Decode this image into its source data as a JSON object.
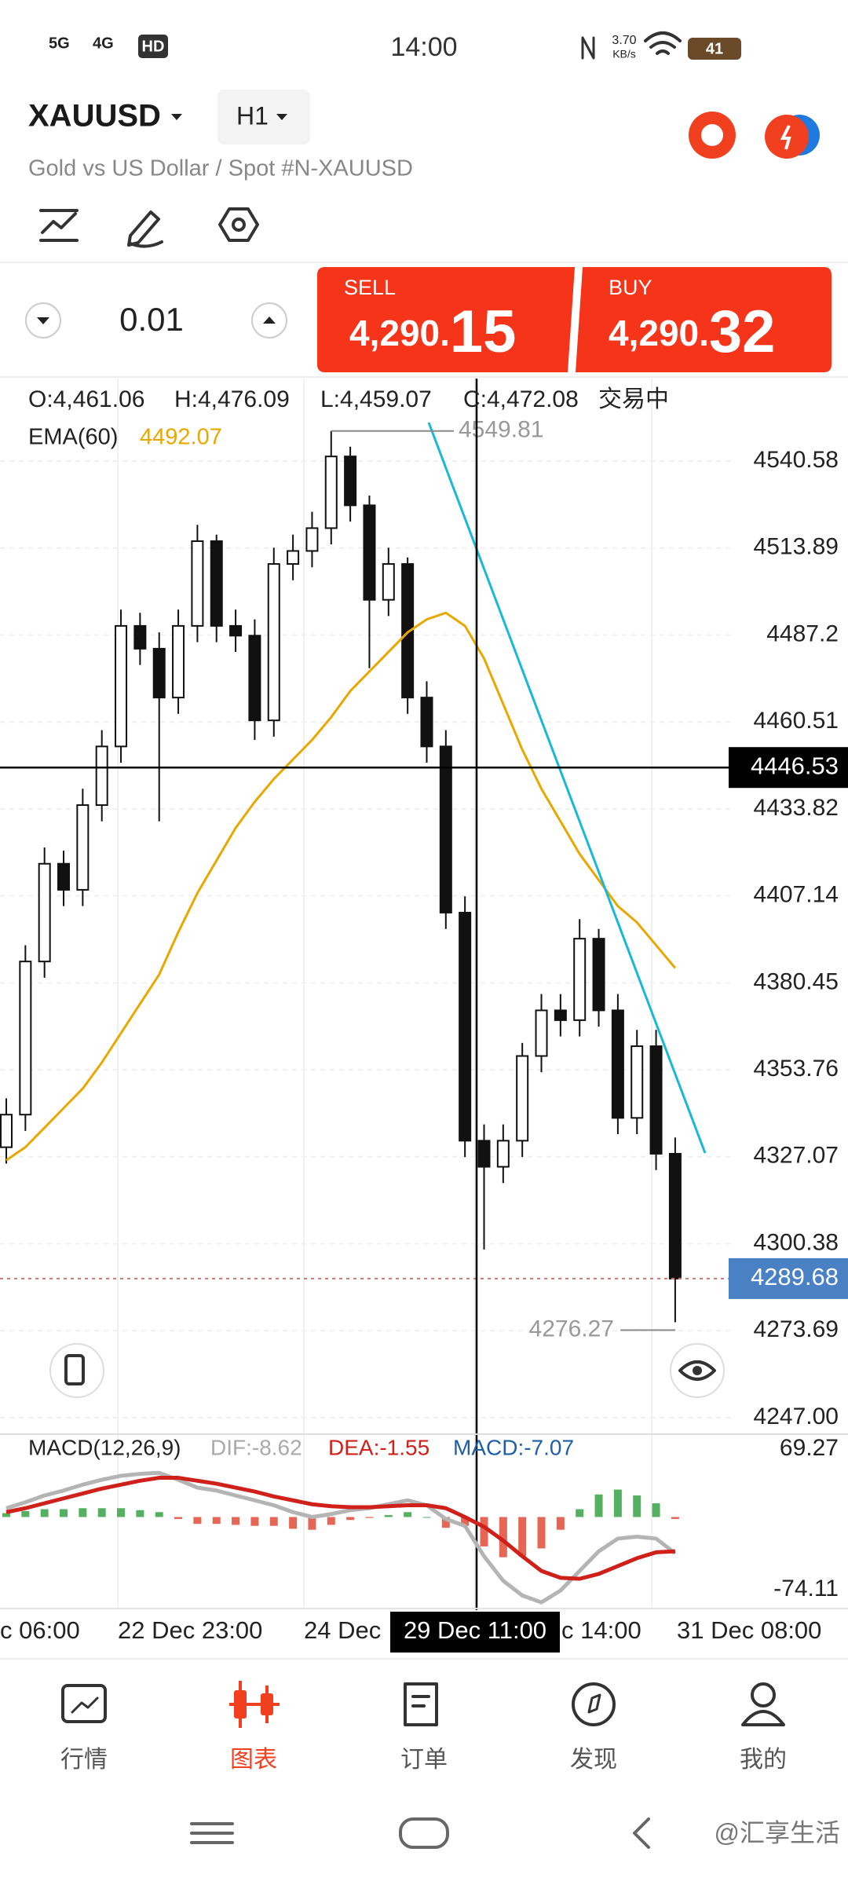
{
  "status_bar": {
    "network": [
      "5G",
      "4G",
      "HD"
    ],
    "time": "14:00",
    "speed": "3.70",
    "speed_unit": "KB/s",
    "battery": "41"
  },
  "header": {
    "symbol": "XAUUSD",
    "timeframe": "H1",
    "description": "Gold vs US Dollar / Spot #N-XAUUSD"
  },
  "trade": {
    "volume": "0.01",
    "sell": {
      "label": "SELL",
      "price_main": "4,290.",
      "price_big": "15"
    },
    "buy": {
      "label": "BUY",
      "price_main": "4,290.",
      "price_big": "32"
    }
  },
  "chart_data": [
    {
      "type": "candlestick",
      "info": [
        "O:4,461.06",
        "H:4,476.09",
        "L:4,459.07",
        "C:4,472.08",
        "交易中"
      ],
      "indicator": {
        "name": "EMA(60)",
        "value": 4492.07,
        "color": "#e8a800"
      },
      "open": [
        4330,
        4340,
        4387,
        4417,
        4409,
        4435,
        4453,
        4490,
        4483,
        4468,
        4490,
        4516,
        4490,
        4487,
        4461,
        4509,
        4513,
        4520,
        4542,
        4527,
        4498,
        4509,
        4468,
        4453,
        4402,
        4332,
        4324,
        4332,
        4358,
        4372,
        4369,
        4394,
        4372,
        4339,
        4361,
        4328
      ],
      "high": [
        4345,
        4392,
        4422,
        4421,
        4440,
        4458,
        4495,
        4494,
        4488,
        4495,
        4521,
        4518,
        4495,
        4492,
        4514,
        4518,
        4525,
        4549.81,
        4545,
        4530,
        4514,
        4511,
        4473,
        4458,
        4407,
        4337,
        4337,
        4362,
        4377,
        4377,
        4400,
        4397,
        4377,
        4366,
        4366,
        4333
      ],
      "low": [
        4325,
        4335,
        4382,
        4404,
        4404,
        4430,
        4448,
        4478,
        4430,
        4463,
        4485,
        4485,
        4482,
        4455,
        4456,
        4504,
        4508,
        4515,
        4522,
        4477,
        4493,
        4463,
        4448,
        4397,
        4327,
        4298.6,
        4319,
        4327,
        4353,
        4364,
        4364,
        4367,
        4334,
        4334,
        4323,
        4276.27
      ],
      "close": [
        4340,
        4387,
        4417,
        4409,
        4435,
        4453,
        4490,
        4483,
        4468,
        4490,
        4516,
        4490,
        4487,
        4461,
        4509,
        4513,
        4520,
        4542,
        4527,
        4498,
        4509,
        4468,
        4453,
        4402,
        4332,
        4324,
        4332,
        4358,
        4372,
        4369,
        4394,
        4372,
        4339,
        4361,
        4328,
        4289.68
      ],
      "ema": [
        4326,
        4330,
        4336,
        4342,
        4348,
        4356,
        4365,
        4374,
        4383,
        4396,
        4408,
        4418,
        4428,
        4436,
        4443,
        4449,
        4455,
        4462,
        4470,
        4476,
        4482,
        4488,
        4492,
        4494,
        4490,
        4480,
        4466,
        4452,
        4440,
        4430,
        4420,
        4412,
        4404,
        4399,
        4392,
        4385
      ],
      "high_marker": 4549.81,
      "low_marker": 4276.27,
      "last_price": 4289.68,
      "crosshair": {
        "price": 4446.53,
        "time": "29 Dec 11:00"
      },
      "ylim": [
        4242.9,
        4565.9
      ],
      "yticks": [
        4540.58,
        4513.89,
        4487.2,
        4460.51,
        4433.82,
        4407.14,
        4380.45,
        4353.76,
        4327.07,
        4300.38,
        4273.69,
        {
          "value": 4247,
          "label": "4247.00"
        }
      ],
      "x_labels": [
        "c 06:00",
        "22 Dec 23:00",
        "24 Dec",
        "c 14:00",
        "31 Dec 08:00"
      ]
    },
    {
      "type": "macd",
      "title": "MACD(12,26,9)",
      "legend": [
        {
          "label": "DIF:-8.62",
          "color": "#aaaaaa"
        },
        {
          "label": "DEA:-1.55",
          "color": "#d0201a"
        },
        {
          "label": "MACD:-7.07",
          "color": "#1f5fa8"
        }
      ],
      "series": [
        {
          "name": "DIF",
          "color": "#b4b4b4",
          "values": [
            9,
            15,
            22,
            27,
            33,
            38,
            42,
            44,
            45,
            38,
            30,
            27,
            22,
            17,
            12,
            5,
            0,
            3,
            7,
            9,
            13,
            17,
            12,
            -2,
            -9,
            -40,
            -65,
            -80,
            -87,
            -75,
            -55,
            -35,
            -22,
            -20,
            -22,
            -37
          ]
        },
        {
          "name": "DEA",
          "color": "#d0201a",
          "values": [
            5,
            9,
            14,
            19,
            24,
            29,
            33,
            37,
            40,
            40,
            37,
            34,
            30,
            26,
            21,
            17,
            13,
            11,
            10,
            10,
            11,
            12,
            12,
            9,
            0,
            -10,
            -24,
            -40,
            -55,
            -62,
            -63,
            -58,
            -50,
            -42,
            -36,
            -35
          ]
        }
      ],
      "histogram": [
        4,
        6,
        8,
        8,
        9,
        9,
        9,
        7,
        5,
        -2,
        -7,
        -7,
        -8,
        -9,
        -9,
        -12,
        -13,
        -8,
        -3,
        -1,
        2,
        5,
        0,
        -11,
        -9,
        -30,
        -41,
        -40,
        -32,
        -13,
        8,
        23,
        28,
        22,
        14,
        -2
      ],
      "ylim": [
        -93.33,
        82.89
      ],
      "yticks": [
        69.27,
        -74.11
      ]
    }
  ],
  "nav": {
    "tabs": [
      "行情",
      "图表",
      "订单",
      "发现",
      "我的"
    ]
  },
  "watermark": "@汇享生活"
}
